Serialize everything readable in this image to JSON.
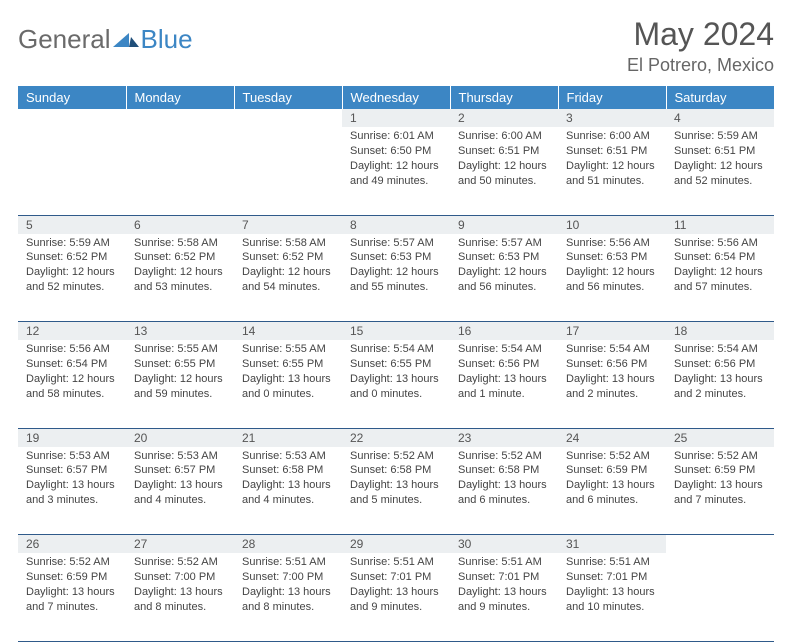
{
  "logo": {
    "part1": "General",
    "part2": "Blue"
  },
  "title": "May 2024",
  "subtitle": "El Potrero, Mexico",
  "colors": {
    "header_bg": "#3c86c4",
    "header_fg": "#ffffff",
    "daynum_bg": "#eceff1",
    "cell_border": "#2f5a8a",
    "title_color": "#555555",
    "subtitle_color": "#666666",
    "logo_gray": "#6a6a6a",
    "logo_blue": "#3c86c4"
  },
  "fonts": {
    "title_size": 32,
    "subtitle_size": 18,
    "header_size": 13,
    "daynum_size": 12,
    "body_size": 11
  },
  "weekdays": [
    "Sunday",
    "Monday",
    "Tuesday",
    "Wednesday",
    "Thursday",
    "Friday",
    "Saturday"
  ],
  "weeks": [
    [
      {
        "num": "",
        "lines": []
      },
      {
        "num": "",
        "lines": []
      },
      {
        "num": "",
        "lines": []
      },
      {
        "num": "1",
        "lines": [
          "Sunrise: 6:01 AM",
          "Sunset: 6:50 PM",
          "Daylight: 12 hours",
          "and 49 minutes."
        ]
      },
      {
        "num": "2",
        "lines": [
          "Sunrise: 6:00 AM",
          "Sunset: 6:51 PM",
          "Daylight: 12 hours",
          "and 50 minutes."
        ]
      },
      {
        "num": "3",
        "lines": [
          "Sunrise: 6:00 AM",
          "Sunset: 6:51 PM",
          "Daylight: 12 hours",
          "and 51 minutes."
        ]
      },
      {
        "num": "4",
        "lines": [
          "Sunrise: 5:59 AM",
          "Sunset: 6:51 PM",
          "Daylight: 12 hours",
          "and 52 minutes."
        ]
      }
    ],
    [
      {
        "num": "5",
        "lines": [
          "Sunrise: 5:59 AM",
          "Sunset: 6:52 PM",
          "Daylight: 12 hours",
          "and 52 minutes."
        ]
      },
      {
        "num": "6",
        "lines": [
          "Sunrise: 5:58 AM",
          "Sunset: 6:52 PM",
          "Daylight: 12 hours",
          "and 53 minutes."
        ]
      },
      {
        "num": "7",
        "lines": [
          "Sunrise: 5:58 AM",
          "Sunset: 6:52 PM",
          "Daylight: 12 hours",
          "and 54 minutes."
        ]
      },
      {
        "num": "8",
        "lines": [
          "Sunrise: 5:57 AM",
          "Sunset: 6:53 PM",
          "Daylight: 12 hours",
          "and 55 minutes."
        ]
      },
      {
        "num": "9",
        "lines": [
          "Sunrise: 5:57 AM",
          "Sunset: 6:53 PM",
          "Daylight: 12 hours",
          "and 56 minutes."
        ]
      },
      {
        "num": "10",
        "lines": [
          "Sunrise: 5:56 AM",
          "Sunset: 6:53 PM",
          "Daylight: 12 hours",
          "and 56 minutes."
        ]
      },
      {
        "num": "11",
        "lines": [
          "Sunrise: 5:56 AM",
          "Sunset: 6:54 PM",
          "Daylight: 12 hours",
          "and 57 minutes."
        ]
      }
    ],
    [
      {
        "num": "12",
        "lines": [
          "Sunrise: 5:56 AM",
          "Sunset: 6:54 PM",
          "Daylight: 12 hours",
          "and 58 minutes."
        ]
      },
      {
        "num": "13",
        "lines": [
          "Sunrise: 5:55 AM",
          "Sunset: 6:55 PM",
          "Daylight: 12 hours",
          "and 59 minutes."
        ]
      },
      {
        "num": "14",
        "lines": [
          "Sunrise: 5:55 AM",
          "Sunset: 6:55 PM",
          "Daylight: 13 hours",
          "and 0 minutes."
        ]
      },
      {
        "num": "15",
        "lines": [
          "Sunrise: 5:54 AM",
          "Sunset: 6:55 PM",
          "Daylight: 13 hours",
          "and 0 minutes."
        ]
      },
      {
        "num": "16",
        "lines": [
          "Sunrise: 5:54 AM",
          "Sunset: 6:56 PM",
          "Daylight: 13 hours",
          "and 1 minute."
        ]
      },
      {
        "num": "17",
        "lines": [
          "Sunrise: 5:54 AM",
          "Sunset: 6:56 PM",
          "Daylight: 13 hours",
          "and 2 minutes."
        ]
      },
      {
        "num": "18",
        "lines": [
          "Sunrise: 5:54 AM",
          "Sunset: 6:56 PM",
          "Daylight: 13 hours",
          "and 2 minutes."
        ]
      }
    ],
    [
      {
        "num": "19",
        "lines": [
          "Sunrise: 5:53 AM",
          "Sunset: 6:57 PM",
          "Daylight: 13 hours",
          "and 3 minutes."
        ]
      },
      {
        "num": "20",
        "lines": [
          "Sunrise: 5:53 AM",
          "Sunset: 6:57 PM",
          "Daylight: 13 hours",
          "and 4 minutes."
        ]
      },
      {
        "num": "21",
        "lines": [
          "Sunrise: 5:53 AM",
          "Sunset: 6:58 PM",
          "Daylight: 13 hours",
          "and 4 minutes."
        ]
      },
      {
        "num": "22",
        "lines": [
          "Sunrise: 5:52 AM",
          "Sunset: 6:58 PM",
          "Daylight: 13 hours",
          "and 5 minutes."
        ]
      },
      {
        "num": "23",
        "lines": [
          "Sunrise: 5:52 AM",
          "Sunset: 6:58 PM",
          "Daylight: 13 hours",
          "and 6 minutes."
        ]
      },
      {
        "num": "24",
        "lines": [
          "Sunrise: 5:52 AM",
          "Sunset: 6:59 PM",
          "Daylight: 13 hours",
          "and 6 minutes."
        ]
      },
      {
        "num": "25",
        "lines": [
          "Sunrise: 5:52 AM",
          "Sunset: 6:59 PM",
          "Daylight: 13 hours",
          "and 7 minutes."
        ]
      }
    ],
    [
      {
        "num": "26",
        "lines": [
          "Sunrise: 5:52 AM",
          "Sunset: 6:59 PM",
          "Daylight: 13 hours",
          "and 7 minutes."
        ]
      },
      {
        "num": "27",
        "lines": [
          "Sunrise: 5:52 AM",
          "Sunset: 7:00 PM",
          "Daylight: 13 hours",
          "and 8 minutes."
        ]
      },
      {
        "num": "28",
        "lines": [
          "Sunrise: 5:51 AM",
          "Sunset: 7:00 PM",
          "Daylight: 13 hours",
          "and 8 minutes."
        ]
      },
      {
        "num": "29",
        "lines": [
          "Sunrise: 5:51 AM",
          "Sunset: 7:01 PM",
          "Daylight: 13 hours",
          "and 9 minutes."
        ]
      },
      {
        "num": "30",
        "lines": [
          "Sunrise: 5:51 AM",
          "Sunset: 7:01 PM",
          "Daylight: 13 hours",
          "and 9 minutes."
        ]
      },
      {
        "num": "31",
        "lines": [
          "Sunrise: 5:51 AM",
          "Sunset: 7:01 PM",
          "Daylight: 13 hours",
          "and 10 minutes."
        ]
      },
      {
        "num": "",
        "lines": []
      }
    ]
  ]
}
